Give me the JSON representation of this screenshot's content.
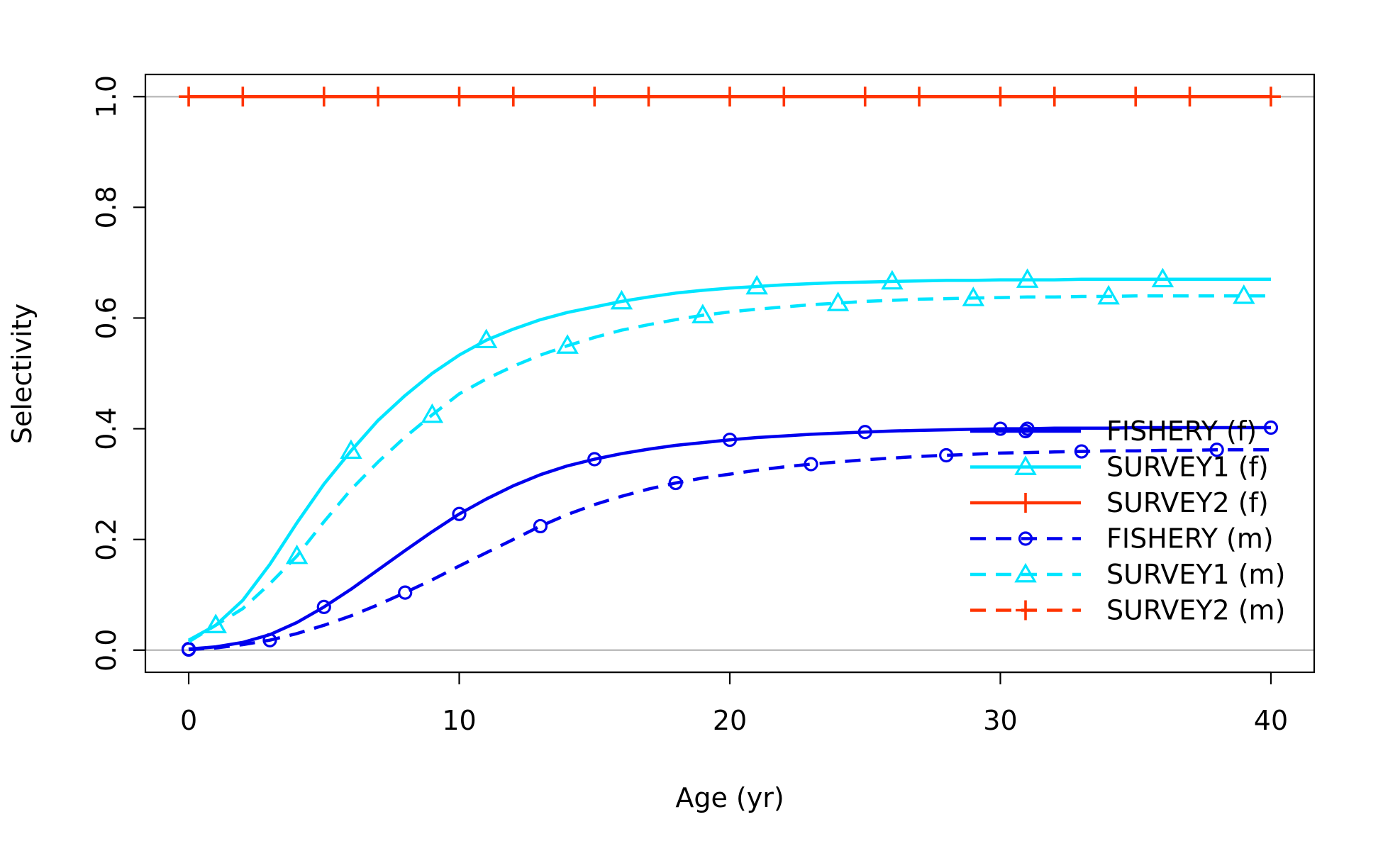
{
  "chart_data": {
    "type": "line",
    "xlabel": "Age (yr)",
    "ylabel": "Selectivity",
    "xlim": [
      -1.6,
      41.6
    ],
    "ylim": [
      -0.04,
      1.04
    ],
    "xticks": [
      0,
      10,
      20,
      30,
      40
    ],
    "yticks": [
      0.0,
      0.2,
      0.4,
      0.6,
      0.8,
      1.0
    ],
    "xtick_labels": [
      "0",
      "10",
      "20",
      "30",
      "40"
    ],
    "ytick_labels": [
      "0.0",
      "0.2",
      "0.4",
      "0.6",
      "0.8",
      "1.0"
    ],
    "reference_lines": [
      0,
      1
    ],
    "reference_line_color": "#bebebe",
    "legend_position": "bottom-right",
    "x": [
      0,
      1,
      2,
      3,
      4,
      5,
      6,
      7,
      8,
      9,
      10,
      11,
      12,
      13,
      14,
      15,
      16,
      17,
      18,
      19,
      20,
      21,
      22,
      23,
      24,
      25,
      26,
      27,
      28,
      29,
      30,
      31,
      32,
      33,
      34,
      35,
      36,
      37,
      38,
      39,
      40
    ],
    "series": [
      {
        "name": "FISHERY (f)",
        "color": "#0000ee",
        "dash": "solid",
        "marker": "circle",
        "marker_x": [
          0,
          5,
          10,
          15,
          20,
          25,
          30,
          31,
          40
        ],
        "values": [
          0.002,
          0.006,
          0.014,
          0.028,
          0.05,
          0.078,
          0.11,
          0.145,
          0.18,
          0.214,
          0.246,
          0.273,
          0.297,
          0.317,
          0.333,
          0.345,
          0.355,
          0.363,
          0.37,
          0.375,
          0.38,
          0.384,
          0.387,
          0.39,
          0.392,
          0.394,
          0.396,
          0.397,
          0.398,
          0.399,
          0.4,
          0.4,
          0.401,
          0.401,
          0.401,
          0.402,
          0.402,
          0.402,
          0.402,
          0.402,
          0.402
        ]
      },
      {
        "name": "SURVEY1 (f)",
        "color": "#00e5ff",
        "dash": "solid",
        "marker": "triangle",
        "marker_x": [
          1,
          6,
          11,
          16,
          21,
          26,
          31,
          36
        ],
        "values": [
          0.018,
          0.045,
          0.09,
          0.155,
          0.23,
          0.3,
          0.36,
          0.415,
          0.46,
          0.5,
          0.533,
          0.56,
          0.58,
          0.597,
          0.61,
          0.62,
          0.63,
          0.638,
          0.645,
          0.65,
          0.654,
          0.657,
          0.66,
          0.662,
          0.664,
          0.665,
          0.666,
          0.667,
          0.668,
          0.668,
          0.669,
          0.669,
          0.669,
          0.67,
          0.67,
          0.67,
          0.67,
          0.67,
          0.67,
          0.67,
          0.67
        ]
      },
      {
        "name": "SURVEY2 (f)",
        "color": "#ff3300",
        "dash": "solid",
        "marker": "plus",
        "marker_x": [
          0,
          2,
          7,
          12,
          17,
          22,
          27,
          32,
          37
        ],
        "values": [
          1,
          1,
          1,
          1,
          1,
          1,
          1,
          1,
          1,
          1,
          1,
          1,
          1,
          1,
          1,
          1,
          1,
          1,
          1,
          1,
          1,
          1,
          1,
          1,
          1,
          1,
          1,
          1,
          1,
          1,
          1,
          1,
          1,
          1,
          1,
          1,
          1,
          1,
          1,
          1,
          1
        ]
      },
      {
        "name": "FISHERY (m)",
        "color": "#0000ee",
        "dash": "dashed",
        "marker": "circle",
        "marker_x": [
          0,
          3,
          8,
          13,
          18,
          23,
          28,
          33,
          38
        ],
        "values": [
          0.001,
          0.004,
          0.01,
          0.018,
          0.03,
          0.045,
          0.062,
          0.082,
          0.104,
          0.127,
          0.152,
          0.176,
          0.2,
          0.224,
          0.245,
          0.263,
          0.278,
          0.291,
          0.302,
          0.311,
          0.318,
          0.325,
          0.331,
          0.336,
          0.34,
          0.344,
          0.347,
          0.35,
          0.352,
          0.354,
          0.356,
          0.357,
          0.358,
          0.359,
          0.36,
          0.36,
          0.361,
          0.361,
          0.362,
          0.362,
          0.362
        ]
      },
      {
        "name": "SURVEY1 (m)",
        "color": "#00e5ff",
        "dash": "dashed",
        "marker": "triangle",
        "marker_x": [
          1,
          4,
          9,
          14,
          19,
          24,
          29,
          34,
          39
        ],
        "values": [
          0.015,
          0.045,
          0.075,
          0.12,
          0.17,
          0.232,
          0.29,
          0.34,
          0.385,
          0.425,
          0.463,
          0.49,
          0.513,
          0.533,
          0.55,
          0.565,
          0.578,
          0.588,
          0.597,
          0.605,
          0.611,
          0.616,
          0.62,
          0.624,
          0.627,
          0.63,
          0.632,
          0.634,
          0.635,
          0.636,
          0.637,
          0.638,
          0.638,
          0.639,
          0.639,
          0.64,
          0.64,
          0.64,
          0.64,
          0.64,
          0.64
        ]
      },
      {
        "name": "SURVEY2 (m)",
        "color": "#ff3300",
        "dash": "dashed",
        "marker": "plus",
        "marker_x": [
          5,
          10,
          15,
          20,
          25,
          30,
          35,
          40
        ],
        "values": [
          1,
          1,
          1,
          1,
          1,
          1,
          1,
          1,
          1,
          1,
          1,
          1,
          1,
          1,
          1,
          1,
          1,
          1,
          1,
          1,
          1,
          1,
          1,
          1,
          1,
          1,
          1,
          1,
          1,
          1,
          1,
          1,
          1,
          1,
          1,
          1,
          1,
          1,
          1,
          1,
          1
        ]
      }
    ]
  }
}
